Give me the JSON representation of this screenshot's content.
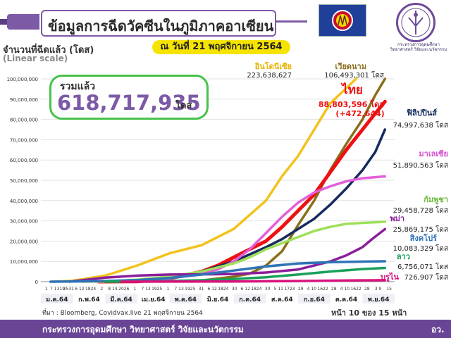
{
  "header": {
    "title": "ข้อมูลการฉีดวัคซีนในภูมิภาคอาเซียน",
    "ministry_text": "กระทรวงการอุดมศึกษา วิทยาศาสตร์ วิจัยและนวัตกรรม",
    "date": "ณ วันที่ 21 พฤศจิกายน 2564"
  },
  "ylabel": "จำนวนที่ฉีดแล้ว (โดส)",
  "scale_label": "(Linear scale)",
  "total": {
    "label": "รวมแล้ว",
    "value": "618,717,935",
    "unit": "โดส"
  },
  "source": "ที่มา : Bloomberg, Covidvax.live 21 พฤศจิกายน 2564",
  "page": "หน้า 10 ของ 15 หน้า",
  "footer": {
    "ministry": "กระทรวงการอุดมศึกษา วิทยาศาสตร์ วิจัยและนวัตกรรม",
    "abbr": "อว."
  },
  "chart_data": {
    "type": "line",
    "ylim": [
      0,
      100000000
    ],
    "yticks": [
      "0",
      "10,000,000",
      "20,000,000",
      "30,000,000",
      "40,000,000",
      "50,000,000",
      "60,000,000",
      "70,000,000",
      "80,000,000",
      "90,000,000",
      "100,000,000"
    ],
    "xlim": [
      0,
      11
    ],
    "day_ticks": [
      "1",
      "7 1319",
      "2531",
      "6 12",
      "1824",
      "2",
      "8 14",
      "2026",
      "1",
      "7 13",
      "1925",
      "1",
      "7 13",
      "1925",
      "31",
      "6 12",
      "1824",
      "30",
      "6 12",
      "1824",
      "30",
      "5 11",
      "1723",
      "29",
      "4 10",
      "1622",
      "28",
      "4 10",
      "1622",
      "28",
      "3 9",
      "15"
    ],
    "months": [
      "ม.ค.64",
      "ก.พ.64",
      "มี.ค.64",
      "เม.ย.64",
      "พ.ค.64",
      "มิ.ย.64",
      "ก.ค.64",
      "ส.ค.64",
      "ก.ย.64",
      "ต.ค.64",
      "พ.ย.64"
    ],
    "series": [
      {
        "name": "อินโดนีเซีย",
        "value_label": "223,638,627",
        "color": "#f2c21b",
        "x": [
          0.4,
          1,
          2,
          3,
          4,
          5,
          6,
          7,
          7.5,
          8,
          8.5,
          9,
          9.8
        ],
        "y": [
          0,
          500000,
          3000000,
          8000000,
          14000000,
          18000000,
          26000000,
          40000000,
          52000000,
          62000000,
          75000000,
          88000000,
          100000000
        ]
      },
      {
        "name": "เวียดนาม",
        "value_label": "106,493,301",
        "unit": "โดส",
        "color": "#8a6e1a",
        "x": [
          2,
          3,
          4,
          5,
          6,
          6.5,
          7,
          7.5,
          8,
          8.5,
          9,
          9.5,
          10,
          10.4,
          10.7
        ],
        "y": [
          0,
          50000,
          200000,
          600000,
          2500000,
          4000000,
          8000000,
          15000000,
          28000000,
          40000000,
          55000000,
          68000000,
          80000000,
          92000000,
          100000000
        ]
      },
      {
        "name": "ไทย",
        "value_label": "88,803,596",
        "unit": "โดส",
        "note": "(+472,644)",
        "color": "#ee1111",
        "x": [
          1.8,
          3,
          4,
          5,
          5.5,
          6,
          6.5,
          7,
          7.5,
          8,
          8.5,
          9,
          9.5,
          10,
          10.4,
          10.7
        ],
        "y": [
          0,
          100000,
          1500000,
          5000000,
          8000000,
          12000000,
          16000000,
          20000000,
          27000000,
          35000000,
          43000000,
          54000000,
          65000000,
          75000000,
          83000000,
          88800000
        ]
      },
      {
        "name": "ฟิลิปปินส์",
        "value_label": "74,997,638",
        "unit": "โดส",
        "color": "#152a5e",
        "x": [
          2,
          3,
          4,
          5,
          6,
          6.5,
          7,
          7.5,
          8,
          8.5,
          9,
          9.5,
          10,
          10.4,
          10.7
        ],
        "y": [
          0,
          200000,
          1500000,
          5000000,
          10000000,
          13500000,
          17000000,
          21000000,
          26000000,
          31000000,
          38000000,
          46000000,
          55000000,
          64000000,
          75000000
        ]
      },
      {
        "name": "มาเลเซีย",
        "value_label": "51,890,563",
        "unit": "โดส",
        "color": "#e35fd9",
        "x": [
          1.7,
          3,
          4,
          5,
          5.5,
          6,
          6.5,
          7,
          7.5,
          8,
          8.5,
          9,
          9.5,
          10,
          10.7
        ],
        "y": [
          0,
          300000,
          1500000,
          4000000,
          6000000,
          10000000,
          16000000,
          24000000,
          32000000,
          39000000,
          44000000,
          47000000,
          49500000,
          51000000,
          51900000
        ]
      },
      {
        "name": "กัมพูชา",
        "value_label": "29,458,728",
        "unit": "โดส",
        "color": "#9ee05a",
        "x": [
          1.3,
          2,
          3,
          4,
          5,
          6,
          6.5,
          7,
          7.5,
          8,
          8.5,
          9,
          9.5,
          10,
          10.7
        ],
        "y": [
          0,
          100000,
          1000000,
          2500000,
          5000000,
          9000000,
          12000000,
          16000000,
          19000000,
          22000000,
          25000000,
          27000000,
          28500000,
          29000000,
          29500000
        ]
      },
      {
        "name": "พม่า",
        "value_label": "25,869,175",
        "unit": "โดส",
        "color": "#8a1f9a",
        "x": [
          0.9,
          2,
          3,
          4,
          5,
          6,
          7,
          8,
          8.5,
          9,
          9.5,
          10,
          10.3,
          10.7
        ],
        "y": [
          0,
          2000000,
          3000000,
          3500000,
          3600000,
          3800000,
          4500000,
          6000000,
          8000000,
          10000000,
          13000000,
          17000000,
          21000000,
          25900000
        ]
      },
      {
        "name": "สิงคโปร์",
        "value_label": "10,083,329",
        "unit": "โดส",
        "color": "#2f73b8",
        "x": [
          0.3,
          1,
          2,
          3,
          4,
          5,
          6,
          7,
          8,
          9,
          10,
          10.7
        ],
        "y": [
          0,
          100000,
          300000,
          800000,
          1800000,
          3500000,
          5500000,
          7500000,
          9000000,
          9600000,
          9900000,
          10083329
        ]
      },
      {
        "name": "ลาว",
        "value_label": "6,756,071",
        "unit": "โดส",
        "color": "#19a05a",
        "x": [
          2,
          3,
          4,
          5,
          6,
          7,
          8,
          9,
          10,
          10.7
        ],
        "y": [
          0,
          100000,
          300000,
          700000,
          1300000,
          2200000,
          3500000,
          5000000,
          6200000,
          6756071
        ]
      },
      {
        "name": "บรูไน",
        "value_label": "726,907",
        "unit": "โดส",
        "color": "#d8127e",
        "x": [
          2.5,
          4,
          6,
          8,
          10,
          10.7
        ],
        "y": [
          0,
          20000,
          100000,
          300000,
          650000,
          726907
        ]
      }
    ]
  }
}
